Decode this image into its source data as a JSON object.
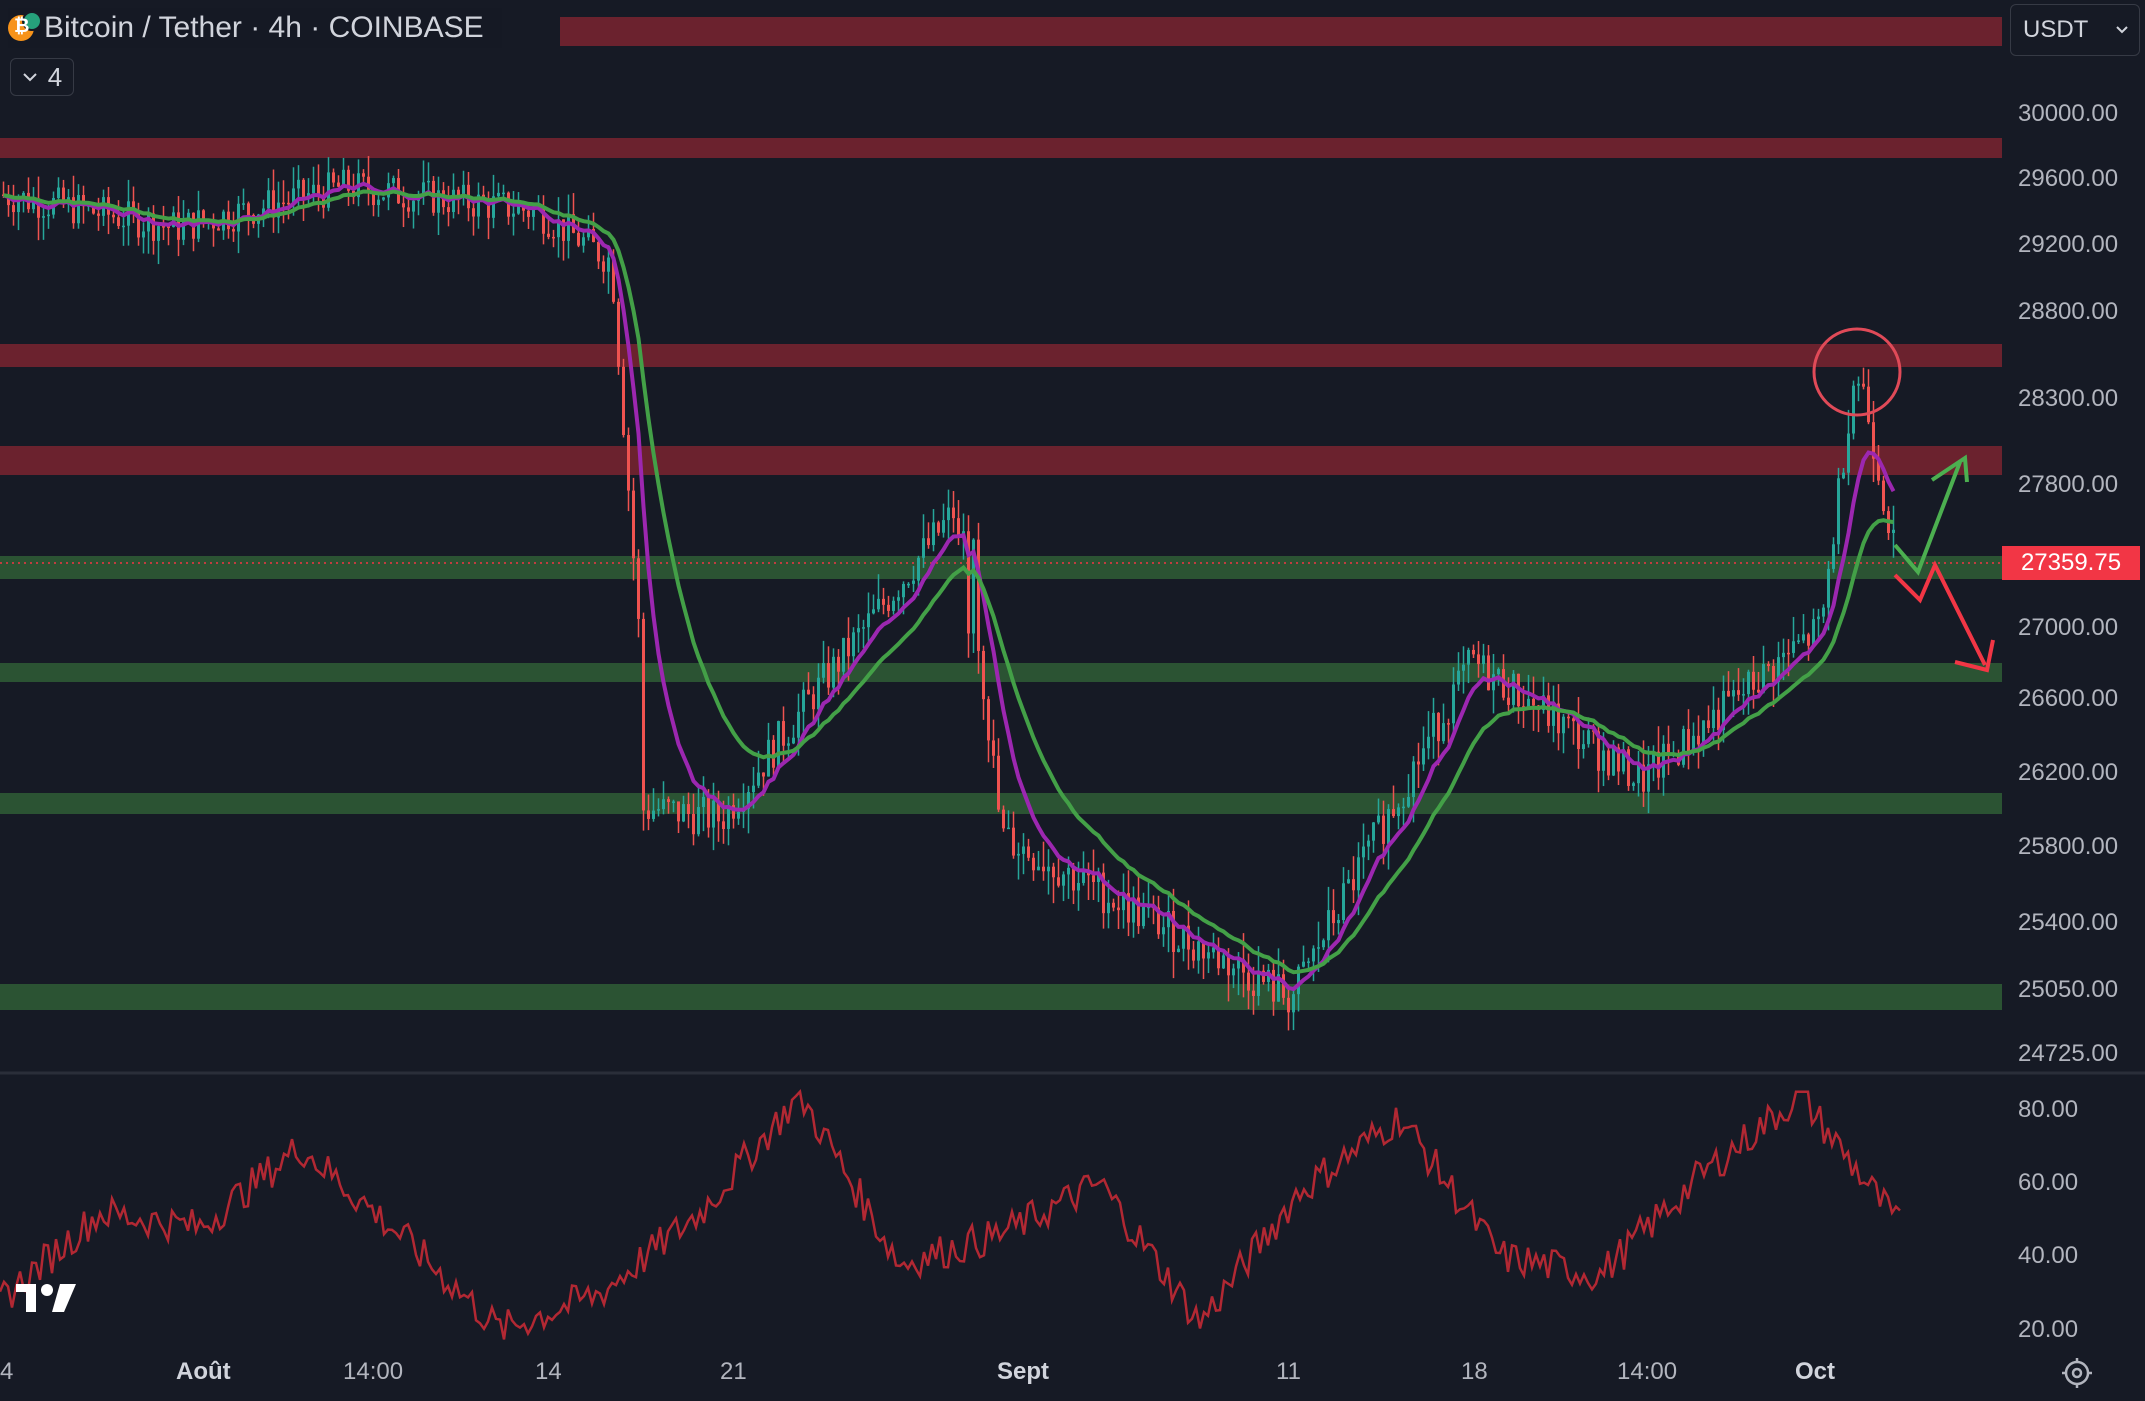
{
  "header": {
    "title": "Bitcoin / Tether · 4h · COINBASE",
    "indicator_count": "4",
    "currency": "USDT",
    "icons": [
      "btc-usdt-coin-icon",
      "chevron-down-icon",
      "tradingview-logo",
      "settings-icon"
    ]
  },
  "price_axis": {
    "labels": [
      "30000.00",
      "29600.00",
      "29200.00",
      "28800.00",
      "28300.00",
      "27800.00",
      "27000.00",
      "26600.00",
      "26200.00",
      "25800.00",
      "25400.00",
      "25050.00",
      "24725.00"
    ],
    "current_price": "27359.75"
  },
  "rsi_axis": {
    "labels": [
      "80.00",
      "60.00",
      "40.00",
      "20.00"
    ]
  },
  "time_axis": {
    "labels": [
      "4",
      "Août",
      "14:00",
      "14",
      "21",
      "Sept",
      "11",
      "18",
      "14:00",
      "Oct"
    ]
  },
  "colors": {
    "background": "#161a25",
    "resistance_zone": "#7a2530",
    "support_zone": "#2e5a35",
    "candle_up": "#26a69a",
    "candle_down": "#ef5350",
    "ema_fast": "#9c27b0",
    "ema_slow": "#43a047",
    "rsi_line": "#b22833",
    "current_price": "#f23645"
  },
  "chart_data": {
    "type": "candlestick",
    "symbol": "Bitcoin / Tether",
    "interval": "4h",
    "exchange": "COINBASE",
    "current_price": 27359.75,
    "resistance_zones": [
      30000,
      28550,
      27880
    ],
    "support_zones": [
      27359.75,
      26750,
      25950,
      25000
    ],
    "price_path_approx": [
      {
        "t": "start",
        "price": 29500
      },
      {
        "t": "Août",
        "price": 29300
      },
      {
        "t": "14:00",
        "price": 29550
      },
      {
        "t": "14",
        "price": 29400
      },
      {
        "t": "pre-21",
        "price": 29100
      },
      {
        "t": "post-drop",
        "price": 26000
      },
      {
        "t": "21",
        "price": 25950
      },
      {
        "t": "spike",
        "price": 27700
      },
      {
        "t": "Sept",
        "price": 25850
      },
      {
        "t": "11",
        "price": 25000
      },
      {
        "t": "18",
        "price": 26800
      },
      {
        "t": "14:00",
        "price": 26150
      },
      {
        "t": "pre-Oct",
        "price": 27000
      },
      {
        "t": "Oct-spike",
        "price": 28550
      },
      {
        "t": "last",
        "price": 27359.75
      }
    ],
    "rsi_path_approx": [
      28,
      52,
      48,
      70,
      46,
      20,
      30,
      52,
      84,
      38,
      46,
      60,
      22,
      58,
      78,
      40,
      35,
      62,
      84,
      48
    ],
    "annotations": [
      "circle-at-high",
      "up-arrow-scenario",
      "down-arrow-scenario"
    ]
  }
}
